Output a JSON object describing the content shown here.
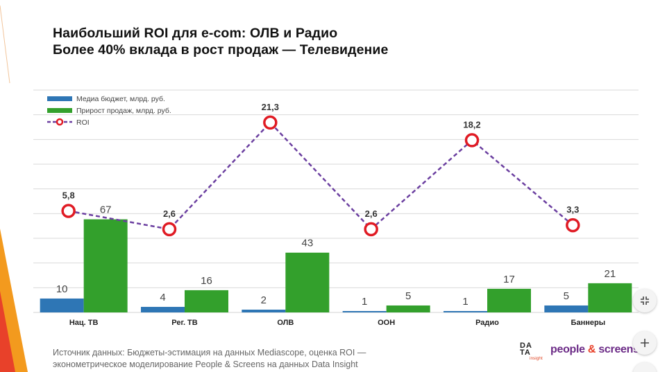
{
  "title": {
    "line1": "Наибольший ROI для e-com: ОЛВ и Радио",
    "line2": "Более 40% вклада в рост продаж — Телевидение"
  },
  "source": {
    "line1": "Источник данных: Бюджеты-эстимация на данных Mediascope, оценка ROI —",
    "line2": "эконометрическое моделирование People & Screens на данных Data Insight"
  },
  "logos": {
    "data_insight": {
      "row1": "DA",
      "row2": "TA",
      "sub": "insight"
    },
    "people_screens": {
      "part1": "people ",
      "amp": "&",
      "part2": " screens"
    }
  },
  "colors": {
    "budget": "#2e76b5",
    "growth": "#33a02c",
    "roi_line": "#6b3fa0",
    "roi_marker": "#e01b24",
    "grid": "#d9d9d9",
    "deco_orange": "#f39a1e",
    "deco_red": "#e8412a"
  },
  "chart_data": {
    "type": "bar",
    "categories": [
      "Нац. ТВ",
      "Рег. ТВ",
      "ОЛВ",
      "OOH",
      "Радио",
      "Баннеры"
    ],
    "series": [
      {
        "name": "Медиа бюджет, млрд. руб.",
        "kind": "bar",
        "values": [
          10,
          4,
          2,
          1,
          1,
          5
        ]
      },
      {
        "name": "Прирост продаж, млрд. руб.",
        "kind": "bar",
        "values": [
          67,
          16,
          43,
          5,
          17,
          21
        ]
      },
      {
        "name": "ROI",
        "kind": "line",
        "values": [
          5.8,
          2.6,
          21.3,
          2.6,
          18.2,
          3.3
        ],
        "labels": [
          "5,8",
          "2,6",
          "21,3",
          "2,6",
          "18,2",
          "3,3"
        ]
      }
    ],
    "bar_ylim": [
      0,
      160
    ],
    "roi_ylim": [
      -12,
      27
    ],
    "legend_position": "top-left",
    "grid": true
  }
}
